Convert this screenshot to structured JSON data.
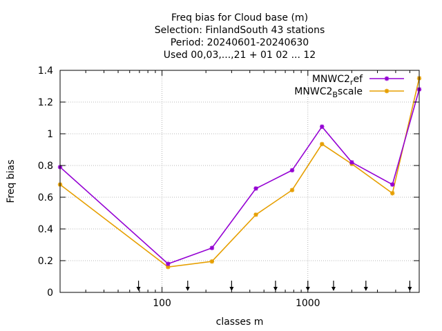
{
  "chart_data": {
    "type": "line",
    "title_lines": [
      "Freq bias  for Cloud base (m)",
      "Selection: FinlandSouth     43 stations",
      "Period: 20240601-20240630",
      "Used 00,03,...,21 + 01 02 ... 12"
    ],
    "xlabel": "classes m",
    "ylabel": "Freq bias",
    "x_scale": "log",
    "xlim": [
      20,
      5800
    ],
    "ylim": [
      0,
      1.4
    ],
    "x_ticks": [
      {
        "value": 100,
        "label": "100"
      },
      {
        "value": 1000,
        "label": "1000"
      }
    ],
    "y_ticks": [
      {
        "value": 0,
        "label": "0"
      },
      {
        "value": 0.2,
        "label": "0.2"
      },
      {
        "value": 0.4,
        "label": "0.4"
      },
      {
        "value": 0.6,
        "label": "0.6"
      },
      {
        "value": 0.8,
        "label": "0.8"
      },
      {
        "value": 1,
        "label": "1"
      },
      {
        "value": 1.2,
        "label": "1.2"
      },
      {
        "value": 1.4,
        "label": "1.4"
      }
    ],
    "grid": true,
    "legend_position": "top-right",
    "class_markers": [
      69,
      150,
      300,
      600,
      1000,
      1500,
      2500,
      5000
    ],
    "series": [
      {
        "name_base": "MNWC2",
        "name_sub": "r",
        "name_tail": "ef",
        "color": "#9400d3",
        "x": [
          20,
          110,
          220,
          440,
          780,
          1250,
          2000,
          3800,
          5800
        ],
        "y": [
          0.79,
          0.18,
          0.28,
          0.655,
          0.77,
          1.045,
          0.82,
          0.68,
          1.28
        ]
      },
      {
        "name_base": "MNWC2",
        "name_sub": "B",
        "name_tail": "scale",
        "color": "#e69f00",
        "x": [
          20,
          110,
          220,
          440,
          780,
          1250,
          2000,
          3800,
          5800
        ],
        "y": [
          0.68,
          0.16,
          0.195,
          0.49,
          0.645,
          0.935,
          0.81,
          0.625,
          1.35
        ]
      }
    ]
  }
}
